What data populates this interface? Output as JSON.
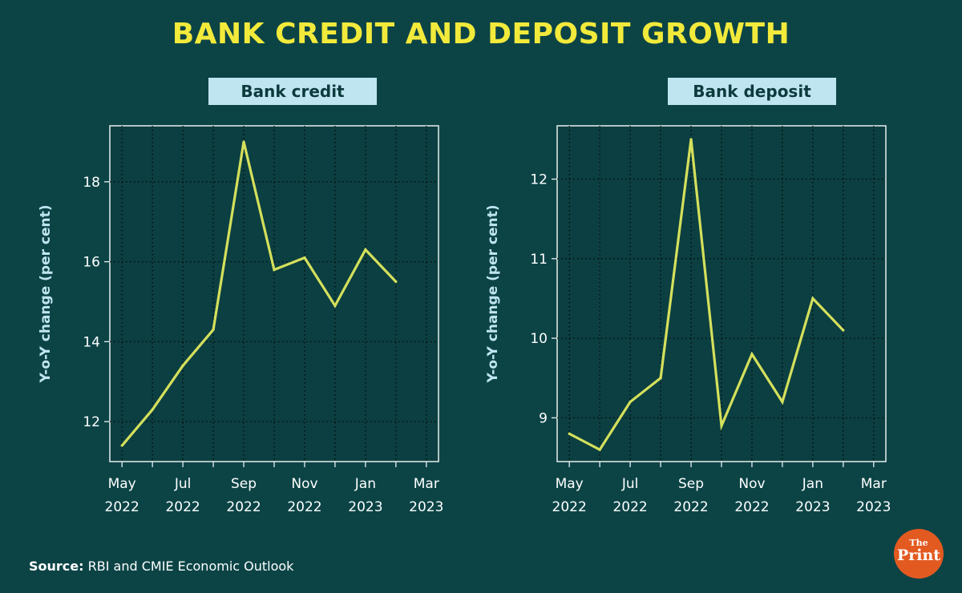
{
  "title": "BANK CREDIT AND DEPOSIT GROWTH",
  "source_label": "Source:",
  "source_text": "RBI and CMIE Economic Outlook",
  "logo": {
    "the": "The",
    "print": "Print"
  },
  "colors": {
    "background": "#0c4446",
    "title": "#f2ea3b",
    "line": "#d4e05c",
    "label_bg": "#bfe5f1"
  },
  "chart_data": [
    {
      "type": "line",
      "title": "Bank credit",
      "ylabel": "Y-o-Y change (per cent)",
      "xlabel": "",
      "x_ticks": [
        {
          "line1": "May",
          "line2": "2022"
        },
        {
          "line1": "Jul",
          "line2": "2022"
        },
        {
          "line1": "Sep",
          "line2": "2022"
        },
        {
          "line1": "Nov",
          "line2": "2022"
        },
        {
          "line1": "Jan",
          "line2": "2023"
        },
        {
          "line1": "Mar",
          "line2": "2023"
        }
      ],
      "y_ticks": [
        "12",
        "14",
        "16",
        "18"
      ],
      "ylim": [
        11.0,
        19.4
      ],
      "x_range_months": [
        -0.4,
        10.4
      ],
      "grid": true,
      "series": [
        {
          "name": "Bank credit",
          "x_months": [
            0,
            1,
            2,
            3,
            4,
            5,
            6,
            7,
            8,
            9
          ],
          "values": [
            11.4,
            12.3,
            13.4,
            14.3,
            19.0,
            15.8,
            16.1,
            14.9,
            16.3,
            15.5
          ]
        }
      ]
    },
    {
      "type": "line",
      "title": "Bank deposit",
      "ylabel": "Y-o-Y change (per cent)",
      "xlabel": "",
      "x_ticks": [
        {
          "line1": "May",
          "line2": "2022"
        },
        {
          "line1": "Jul",
          "line2": "2022"
        },
        {
          "line1": "Sep",
          "line2": "2022"
        },
        {
          "line1": "Nov",
          "line2": "2022"
        },
        {
          "line1": "Jan",
          "line2": "2023"
        },
        {
          "line1": "Mar",
          "line2": "2023"
        }
      ],
      "y_ticks": [
        "9",
        "10",
        "11",
        "12"
      ],
      "ylim": [
        8.45,
        12.67
      ],
      "x_range_months": [
        -0.4,
        10.4
      ],
      "grid": true,
      "series": [
        {
          "name": "Bank deposit",
          "x_months": [
            0,
            1,
            2,
            3,
            4,
            5,
            6,
            7,
            8,
            9
          ],
          "values": [
            8.8,
            8.6,
            9.2,
            9.5,
            12.5,
            8.9,
            9.8,
            9.2,
            10.5,
            10.1
          ]
        }
      ]
    }
  ]
}
